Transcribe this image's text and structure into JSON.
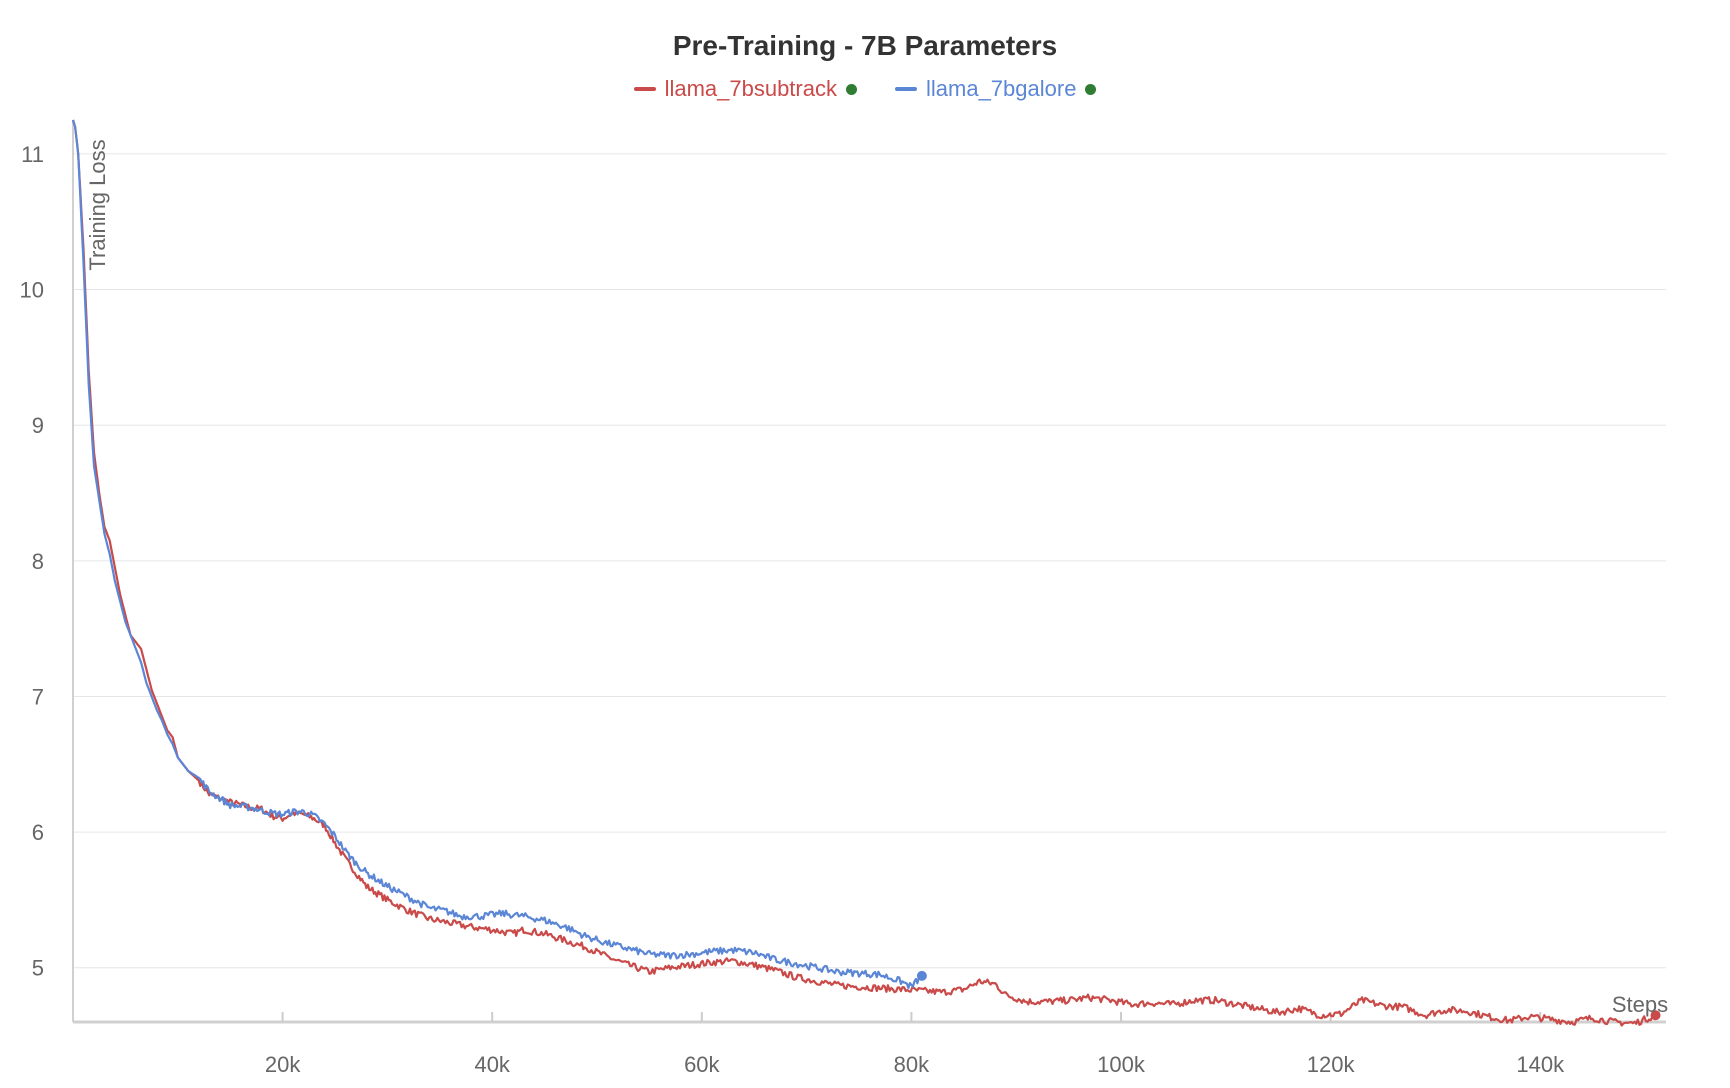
{
  "chart_data": {
    "type": "line",
    "title": "Pre-Training - 7B Parameters",
    "xlabel": "Steps",
    "ylabel": "Training Loss",
    "xlim": [
      0,
      152000
    ],
    "ylim": [
      4.6,
      11.25
    ],
    "xticks": [
      20000,
      40000,
      60000,
      80000,
      100000,
      120000,
      140000
    ],
    "xtick_labels": [
      "20k",
      "40k",
      "60k",
      "80k",
      "100k",
      "120k",
      "140k"
    ],
    "yticks": [
      5,
      6,
      7,
      8,
      9,
      10,
      11
    ],
    "ytick_labels": [
      "5",
      "6",
      "7",
      "8",
      "9",
      "10",
      "11"
    ],
    "grid": "horizontal",
    "legend_position": "top-center",
    "series": [
      {
        "name": "llama_7bsubtrack",
        "color": "#c94a48",
        "status_color": "#2e7d32",
        "points": [
          [
            0,
            11.25
          ],
          [
            200,
            11.2
          ],
          [
            500,
            11.0
          ],
          [
            1000,
            10.3
          ],
          [
            1500,
            9.4
          ],
          [
            2000,
            8.8
          ],
          [
            2500,
            8.5
          ],
          [
            3000,
            8.25
          ],
          [
            3500,
            8.15
          ],
          [
            4000,
            7.95
          ],
          [
            4500,
            7.75
          ],
          [
            5000,
            7.6
          ],
          [
            5500,
            7.45
          ],
          [
            6000,
            7.4
          ],
          [
            6500,
            7.35
          ],
          [
            7000,
            7.2
          ],
          [
            7500,
            7.05
          ],
          [
            8000,
            6.95
          ],
          [
            8500,
            6.85
          ],
          [
            9000,
            6.75
          ],
          [
            9500,
            6.7
          ],
          [
            10000,
            6.55
          ],
          [
            11000,
            6.45
          ],
          [
            12000,
            6.38
          ],
          [
            13000,
            6.28
          ],
          [
            14000,
            6.25
          ],
          [
            15000,
            6.22
          ],
          [
            16000,
            6.2
          ],
          [
            17000,
            6.18
          ],
          [
            18000,
            6.17
          ],
          [
            19000,
            6.12
          ],
          [
            20000,
            6.1
          ],
          [
            21000,
            6.14
          ],
          [
            22000,
            6.13
          ],
          [
            23000,
            6.1
          ],
          [
            24000,
            6.05
          ],
          [
            25000,
            5.92
          ],
          [
            26000,
            5.8
          ],
          [
            27000,
            5.7
          ],
          [
            28000,
            5.6
          ],
          [
            29000,
            5.55
          ],
          [
            30000,
            5.5
          ],
          [
            32000,
            5.42
          ],
          [
            34000,
            5.36
          ],
          [
            36000,
            5.33
          ],
          [
            38000,
            5.3
          ],
          [
            40000,
            5.28
          ],
          [
            42000,
            5.25
          ],
          [
            43000,
            5.28
          ],
          [
            45000,
            5.25
          ],
          [
            47000,
            5.2
          ],
          [
            49000,
            5.15
          ],
          [
            51000,
            5.08
          ],
          [
            53000,
            5.02
          ],
          [
            55000,
            4.97
          ],
          [
            57000,
            5.0
          ],
          [
            59000,
            5.02
          ],
          [
            61000,
            5.04
          ],
          [
            63000,
            5.05
          ],
          [
            65000,
            5.02
          ],
          [
            67000,
            4.98
          ],
          [
            69000,
            4.93
          ],
          [
            71000,
            4.9
          ],
          [
            73000,
            4.87
          ],
          [
            75000,
            4.86
          ],
          [
            77000,
            4.85
          ],
          [
            79000,
            4.84
          ],
          [
            81000,
            4.83
          ],
          [
            83000,
            4.82
          ],
          [
            85000,
            4.84
          ],
          [
            86500,
            4.9
          ],
          [
            88000,
            4.88
          ],
          [
            89000,
            4.8
          ],
          [
            91000,
            4.75
          ],
          [
            93000,
            4.75
          ],
          [
            95000,
            4.76
          ],
          [
            97000,
            4.78
          ],
          [
            99000,
            4.76
          ],
          [
            101000,
            4.73
          ],
          [
            103000,
            4.74
          ],
          [
            105000,
            4.73
          ],
          [
            107000,
            4.76
          ],
          [
            109000,
            4.76
          ],
          [
            111000,
            4.73
          ],
          [
            113000,
            4.7
          ],
          [
            115000,
            4.67
          ],
          [
            117000,
            4.7
          ],
          [
            119000,
            4.65
          ],
          [
            121000,
            4.66
          ],
          [
            123000,
            4.76
          ],
          [
            125000,
            4.72
          ],
          [
            127000,
            4.71
          ],
          [
            129000,
            4.65
          ],
          [
            131000,
            4.69
          ],
          [
            133000,
            4.68
          ],
          [
            135000,
            4.64
          ],
          [
            137000,
            4.61
          ],
          [
            139000,
            4.64
          ],
          [
            141000,
            4.62
          ],
          [
            143000,
            4.6
          ],
          [
            145000,
            4.63
          ],
          [
            147000,
            4.6
          ],
          [
            149000,
            4.59
          ],
          [
            151000,
            4.65
          ]
        ]
      },
      {
        "name": "llama_7bgalore",
        "color": "#5b86d6",
        "status_color": "#2e7d32",
        "points": [
          [
            0,
            11.25
          ],
          [
            200,
            11.2
          ],
          [
            500,
            11.0
          ],
          [
            1000,
            10.2
          ],
          [
            1500,
            9.3
          ],
          [
            2000,
            8.7
          ],
          [
            2500,
            8.45
          ],
          [
            3000,
            8.2
          ],
          [
            3500,
            8.05
          ],
          [
            4000,
            7.85
          ],
          [
            4500,
            7.7
          ],
          [
            5000,
            7.55
          ],
          [
            5500,
            7.45
          ],
          [
            6000,
            7.35
          ],
          [
            6500,
            7.25
          ],
          [
            7000,
            7.1
          ],
          [
            7500,
            7.0
          ],
          [
            8000,
            6.9
          ],
          [
            8500,
            6.82
          ],
          [
            9000,
            6.72
          ],
          [
            9500,
            6.65
          ],
          [
            10000,
            6.55
          ],
          [
            11000,
            6.45
          ],
          [
            12000,
            6.4
          ],
          [
            13000,
            6.3
          ],
          [
            14000,
            6.25
          ],
          [
            15000,
            6.2
          ],
          [
            16000,
            6.19
          ],
          [
            17000,
            6.18
          ],
          [
            18000,
            6.16
          ],
          [
            19000,
            6.14
          ],
          [
            20000,
            6.13
          ],
          [
            21000,
            6.15
          ],
          [
            22000,
            6.15
          ],
          [
            23000,
            6.12
          ],
          [
            24000,
            6.06
          ],
          [
            25000,
            5.97
          ],
          [
            26000,
            5.86
          ],
          [
            27000,
            5.77
          ],
          [
            28000,
            5.7
          ],
          [
            29000,
            5.65
          ],
          [
            30000,
            5.6
          ],
          [
            32000,
            5.52
          ],
          [
            34000,
            5.44
          ],
          [
            35500,
            5.42
          ],
          [
            37000,
            5.38
          ],
          [
            39000,
            5.38
          ],
          [
            41000,
            5.4
          ],
          [
            43000,
            5.38
          ],
          [
            45000,
            5.35
          ],
          [
            47000,
            5.3
          ],
          [
            49000,
            5.23
          ],
          [
            51000,
            5.18
          ],
          [
            53000,
            5.14
          ],
          [
            55000,
            5.1
          ],
          [
            57000,
            5.09
          ],
          [
            59000,
            5.1
          ],
          [
            61000,
            5.12
          ],
          [
            63000,
            5.13
          ],
          [
            65000,
            5.11
          ],
          [
            67000,
            5.06
          ],
          [
            69000,
            5.03
          ],
          [
            71000,
            5.0
          ],
          [
            73000,
            4.97
          ],
          [
            75000,
            4.96
          ],
          [
            77000,
            4.95
          ],
          [
            79000,
            4.9
          ],
          [
            80000,
            4.86
          ],
          [
            81000,
            4.94
          ]
        ]
      }
    ]
  }
}
